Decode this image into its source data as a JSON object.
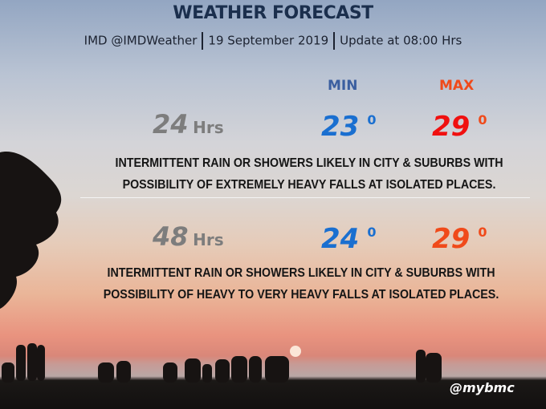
{
  "title": "WEATHER FORECAST",
  "subtitle": {
    "source": "IMD @IMDWeather",
    "date": "19 September 2019",
    "update": "Update at 08:00 Hrs"
  },
  "columns": {
    "min_label": "MIN",
    "max_label": "MAX"
  },
  "colors": {
    "title": "#1b2f4d",
    "min_label": "#3b5fa0",
    "max_label": "#f04a1a",
    "min_value": "#1a6fd0",
    "max_value_24": "#f01010",
    "max_value_48": "#f04a1a",
    "hours": "#7d7d7d"
  },
  "forecasts": [
    {
      "hours": "24",
      "unit": "Hrs",
      "min": "23",
      "max": "29",
      "degree": "0",
      "line1": "INTERMITTENT RAIN OR SHOWERS LIKELY IN CITY & SUBURBS WITH",
      "line2": "POSSIBILITY OF EXTREMELY  HEAVY FALLS AT ISOLATED PLACES."
    },
    {
      "hours": "48",
      "unit": "Hrs",
      "min": "24",
      "max": "29",
      "degree": "0",
      "line1": "INTERMITTENT RAIN OR SHOWERS LIKELY IN CITY & SUBURBS WITH",
      "line2": "POSSIBILITY OF HEAVY TO VERY HEAVY FALLS AT ISOLATED PLACES."
    }
  ],
  "handle": "@mybmc"
}
